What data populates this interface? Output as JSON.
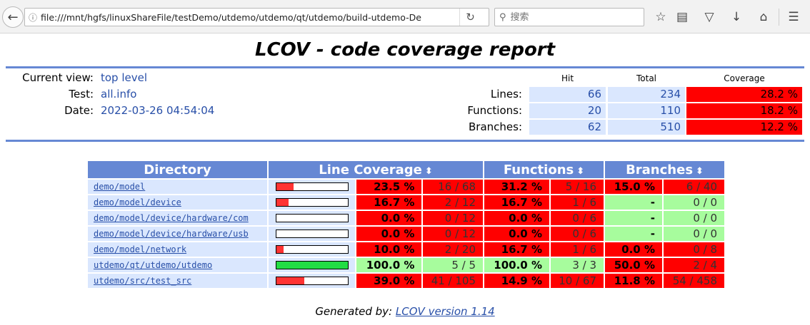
{
  "browser": {
    "url": "file:///mnt/hgfs/linuxShareFile/testDemo/utdemo/utdemo/qt/utdemo/build-utdemo-De",
    "search_placeholder": "搜索"
  },
  "report": {
    "title": "LCOV - code coverage report",
    "info": [
      {
        "label": "Current view:",
        "value": "top level"
      },
      {
        "label": "Test:",
        "value": "all.info"
      },
      {
        "label": "Date:",
        "value": "2022-03-26 04:54:04"
      }
    ],
    "summary_headers": {
      "hit": "Hit",
      "total": "Total",
      "coverage": "Coverage"
    },
    "summary": [
      {
        "label": "Lines:",
        "hit": "66",
        "total": "234",
        "coverage": "28.2 %"
      },
      {
        "label": "Functions:",
        "hit": "20",
        "total": "110",
        "coverage": "18.2 %"
      },
      {
        "label": "Branches:",
        "hit": "62",
        "total": "510",
        "coverage": "12.2 %"
      }
    ],
    "table_headers": {
      "directory": "Directory",
      "line": "Line Coverage",
      "functions": "Functions",
      "branches": "Branches"
    },
    "rows": [
      {
        "dir": "demo/model",
        "line_fraction": 0.235,
        "line_pct": "23.5 %",
        "line_cnt": "16 / 68",
        "line_level": "lo",
        "fn_pct": "31.2 %",
        "fn_cnt": "5 / 16",
        "fn_level": "lo",
        "br_pct": "15.0 %",
        "br_cnt": "6 / 40",
        "br_level": "lo"
      },
      {
        "dir": "demo/model/device",
        "line_fraction": 0.167,
        "line_pct": "16.7 %",
        "line_cnt": "2 / 12",
        "line_level": "lo",
        "fn_pct": "16.7 %",
        "fn_cnt": "1 / 6",
        "fn_level": "lo",
        "br_pct": "-",
        "br_cnt": "0 / 0",
        "br_level": "hi"
      },
      {
        "dir": "demo/model/device/hardware/com",
        "line_fraction": 0.0,
        "line_pct": "0.0 %",
        "line_cnt": "0 / 12",
        "line_level": "lo",
        "fn_pct": "0.0 %",
        "fn_cnt": "0 / 6",
        "fn_level": "lo",
        "br_pct": "-",
        "br_cnt": "0 / 0",
        "br_level": "hi"
      },
      {
        "dir": "demo/model/device/hardware/usb",
        "line_fraction": 0.0,
        "line_pct": "0.0 %",
        "line_cnt": "0 / 12",
        "line_level": "lo",
        "fn_pct": "0.0 %",
        "fn_cnt": "0 / 6",
        "fn_level": "lo",
        "br_pct": "-",
        "br_cnt": "0 / 0",
        "br_level": "hi"
      },
      {
        "dir": "demo/model/network",
        "line_fraction": 0.1,
        "line_pct": "10.0 %",
        "line_cnt": "2 / 20",
        "line_level": "lo",
        "fn_pct": "16.7 %",
        "fn_cnt": "1 / 6",
        "fn_level": "lo",
        "br_pct": "0.0 %",
        "br_cnt": "0 / 8",
        "br_level": "lo"
      },
      {
        "dir": "utdemo/qt/utdemo/utdemo",
        "line_fraction": 1.0,
        "line_pct": "100.0 %",
        "line_cnt": "5 / 5",
        "line_level": "hi",
        "fn_pct": "100.0 %",
        "fn_cnt": "3 / 3",
        "fn_level": "hi",
        "br_pct": "50.0 %",
        "br_cnt": "2 / 4",
        "br_level": "lo"
      },
      {
        "dir": "utdemo/src/test_src",
        "line_fraction": 0.39,
        "line_pct": "39.0 %",
        "line_cnt": "41 / 105",
        "line_level": "lo",
        "fn_pct": "14.9 %",
        "fn_cnt": "10 / 67",
        "fn_level": "lo",
        "br_pct": "11.8 %",
        "br_cnt": "54 / 458",
        "br_level": "lo"
      }
    ],
    "footer_prefix": "Generated by:",
    "footer_link": "LCOV version 1.14"
  },
  "colors": {
    "bar_low": "#ff3333",
    "bar_high": "#22dd44"
  }
}
